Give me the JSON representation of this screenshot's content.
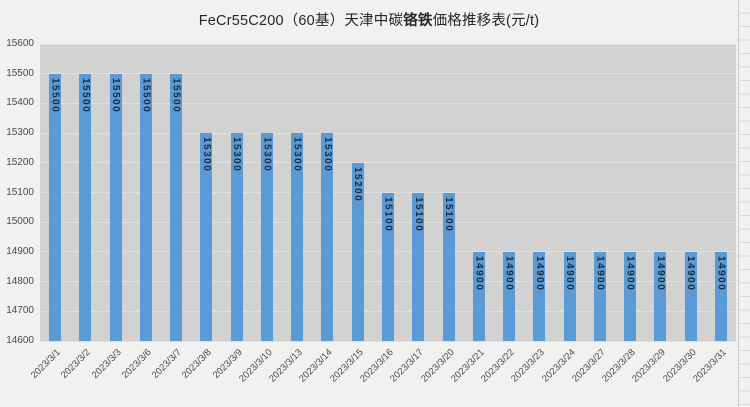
{
  "title": {
    "pre": "FeCr55C200（60基）天津中碳",
    "bold": "铬铁",
    "post": "価格推移表(元/t)"
  },
  "chart_data": {
    "type": "bar",
    "title": "FeCr55C200（60基）天津中碳铬铁価格推移表(元/t)",
    "xlabel": "",
    "ylabel": "",
    "categories": [
      "2023/3/1",
      "2023/3/2",
      "2023/3/3",
      "2023/3/6",
      "2023/3/7",
      "2023/3/8",
      "2023/3/9",
      "2023/3/10",
      "2023/3/13",
      "2023/3/14",
      "2023/3/15",
      "2023/3/16",
      "2023/3/17",
      "2023/3/20",
      "2023/3/21",
      "2023/3/22",
      "2023/3/23",
      "2023/3/24",
      "2023/3/27",
      "2023/3/28",
      "2023/3/29",
      "2023/3/30",
      "2023/3/31"
    ],
    "values": [
      15500,
      15500,
      15500,
      15500,
      15500,
      15300,
      15300,
      15300,
      15300,
      15300,
      15200,
      15100,
      15100,
      15100,
      14900,
      14900,
      14900,
      14900,
      14900,
      14900,
      14900,
      14900,
      14900
    ],
    "ylim": [
      14600,
      15600
    ],
    "yticks": [
      14600,
      14700,
      14800,
      14900,
      15000,
      15100,
      15200,
      15300,
      15400,
      15500,
      15600
    ],
    "grid": true,
    "legend": false,
    "data_labels": "inside-end-vertical",
    "colors": {
      "bar": "#5B9BD5",
      "data_label": "#1E2B3C",
      "plot_background": "#D2D2D2",
      "gridline": "#E0E0E0",
      "axis_text": "#4A4A4A",
      "title_text": "#262626",
      "background": "#F1F1F0"
    }
  }
}
